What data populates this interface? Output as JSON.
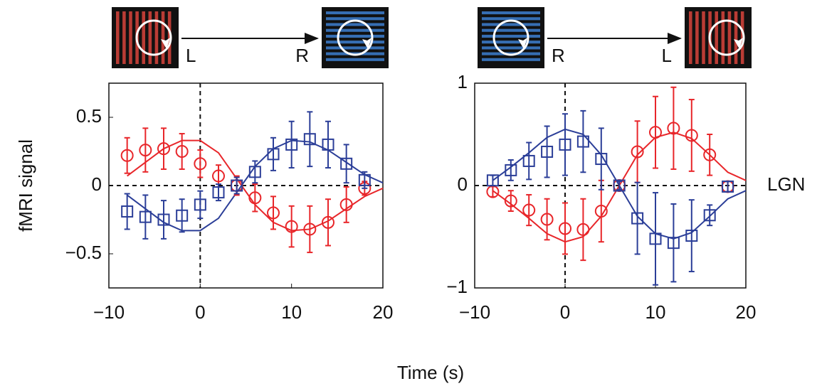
{
  "chart_data": [
    {
      "type": "scatter",
      "ylabel": "fMRI signal",
      "xlabel": "Time (s)",
      "stimulus": {
        "from": "L",
        "to": "R"
      },
      "xlim": [
        -10,
        20
      ],
      "xticks": [
        {
          "value": -10,
          "label": "−10"
        },
        0,
        10,
        20
      ],
      "ylim": [
        -0.75,
        0.75
      ],
      "yticks": [
        {
          "value": -0.5,
          "label": "−0.5"
        },
        0,
        0.5
      ],
      "x": [
        -8,
        -6,
        -4,
        -2,
        0,
        2,
        4,
        6,
        8,
        10,
        12,
        14,
        16,
        18
      ],
      "series": [
        {
          "marker": "circle",
          "color": "#e8262a",
          "values": [
            0.22,
            0.26,
            0.27,
            0.25,
            0.16,
            0.07,
            0.0,
            -0.09,
            -0.2,
            -0.3,
            -0.32,
            -0.27,
            -0.14,
            -0.02
          ],
          "errors": [
            0.13,
            0.16,
            0.15,
            0.13,
            0.1,
            0.08,
            0.07,
            0.1,
            0.12,
            0.15,
            0.17,
            0.17,
            0.13,
            0.05
          ]
        },
        {
          "marker": "square",
          "color": "#2b3e98",
          "values": [
            -0.19,
            -0.23,
            -0.25,
            -0.22,
            -0.14,
            -0.05,
            0.0,
            0.1,
            0.23,
            0.3,
            0.34,
            0.3,
            0.16,
            0.04
          ],
          "errors": [
            0.13,
            0.16,
            0.14,
            0.12,
            0.1,
            0.06,
            0.06,
            0.08,
            0.12,
            0.17,
            0.2,
            0.17,
            0.14,
            0.06
          ]
        }
      ],
      "fits": [
        {
          "color": "#e8262a",
          "x": [
            -8,
            -6,
            -4,
            -2,
            0,
            2,
            4,
            6,
            8,
            10,
            12,
            14,
            16,
            18,
            20
          ],
          "values": [
            0.07,
            0.17,
            0.27,
            0.33,
            0.33,
            0.24,
            0.05,
            -0.14,
            -0.27,
            -0.33,
            -0.32,
            -0.26,
            -0.17,
            -0.08,
            -0.02
          ]
        },
        {
          "color": "#2b3e98",
          "x": [
            -8,
            -6,
            -4,
            -2,
            0,
            2,
            4,
            6,
            8,
            10,
            12,
            14,
            16,
            18,
            20
          ],
          "values": [
            -0.07,
            -0.17,
            -0.27,
            -0.33,
            -0.33,
            -0.24,
            -0.05,
            0.14,
            0.27,
            0.33,
            0.32,
            0.26,
            0.17,
            0.08,
            0.02
          ]
        }
      ]
    },
    {
      "type": "scatter",
      "annotation": "LGN",
      "stimulus": {
        "from": "R",
        "to": "L"
      },
      "xlim": [
        -10,
        20
      ],
      "xticks": [
        {
          "value": -10,
          "label": "−10"
        },
        0,
        10,
        20
      ],
      "ylim": [
        -1,
        1
      ],
      "yticks": [
        {
          "value": -1,
          "label": "−1"
        },
        0,
        1
      ],
      "x": [
        -8,
        -6,
        -4,
        -2,
        0,
        2,
        4,
        6,
        8,
        10,
        12,
        14,
        16,
        18
      ],
      "series": [
        {
          "marker": "circle",
          "color": "#e8262a",
          "values": [
            -0.06,
            -0.15,
            -0.24,
            -0.33,
            -0.42,
            -0.43,
            -0.25,
            0.0,
            0.33,
            0.52,
            0.56,
            0.49,
            0.3,
            -0.01
          ],
          "errors": [
            0.05,
            0.1,
            0.15,
            0.2,
            0.25,
            0.3,
            0.3,
            0.05,
            0.3,
            0.35,
            0.4,
            0.35,
            0.2,
            0.05
          ]
        },
        {
          "marker": "square",
          "color": "#2b3e98",
          "values": [
            0.05,
            0.15,
            0.24,
            0.33,
            0.4,
            0.43,
            0.26,
            0.0,
            -0.32,
            -0.52,
            -0.56,
            -0.49,
            -0.29,
            -0.01
          ],
          "errors": [
            0.05,
            0.1,
            0.18,
            0.25,
            0.3,
            0.3,
            0.3,
            0.04,
            0.35,
            0.45,
            0.38,
            0.35,
            0.1,
            0.05
          ]
        }
      ],
      "fits": [
        {
          "color": "#e8262a",
          "x": [
            -8,
            -6,
            -4,
            -2,
            0,
            2,
            4,
            6,
            8,
            10,
            12,
            14,
            16,
            18,
            20
          ],
          "values": [
            -0.05,
            -0.18,
            -0.32,
            -0.47,
            -0.55,
            -0.5,
            -0.3,
            0.0,
            0.3,
            0.47,
            0.52,
            0.46,
            0.3,
            0.13,
            0.05
          ]
        },
        {
          "color": "#2b3e98",
          "x": [
            -8,
            -6,
            -4,
            -2,
            0,
            2,
            4,
            6,
            8,
            10,
            12,
            14,
            16,
            18,
            20
          ],
          "values": [
            0.05,
            0.18,
            0.32,
            0.47,
            0.55,
            0.5,
            0.3,
            0.0,
            -0.3,
            -0.47,
            -0.52,
            -0.46,
            -0.3,
            -0.13,
            -0.05
          ]
        }
      ]
    }
  ]
}
